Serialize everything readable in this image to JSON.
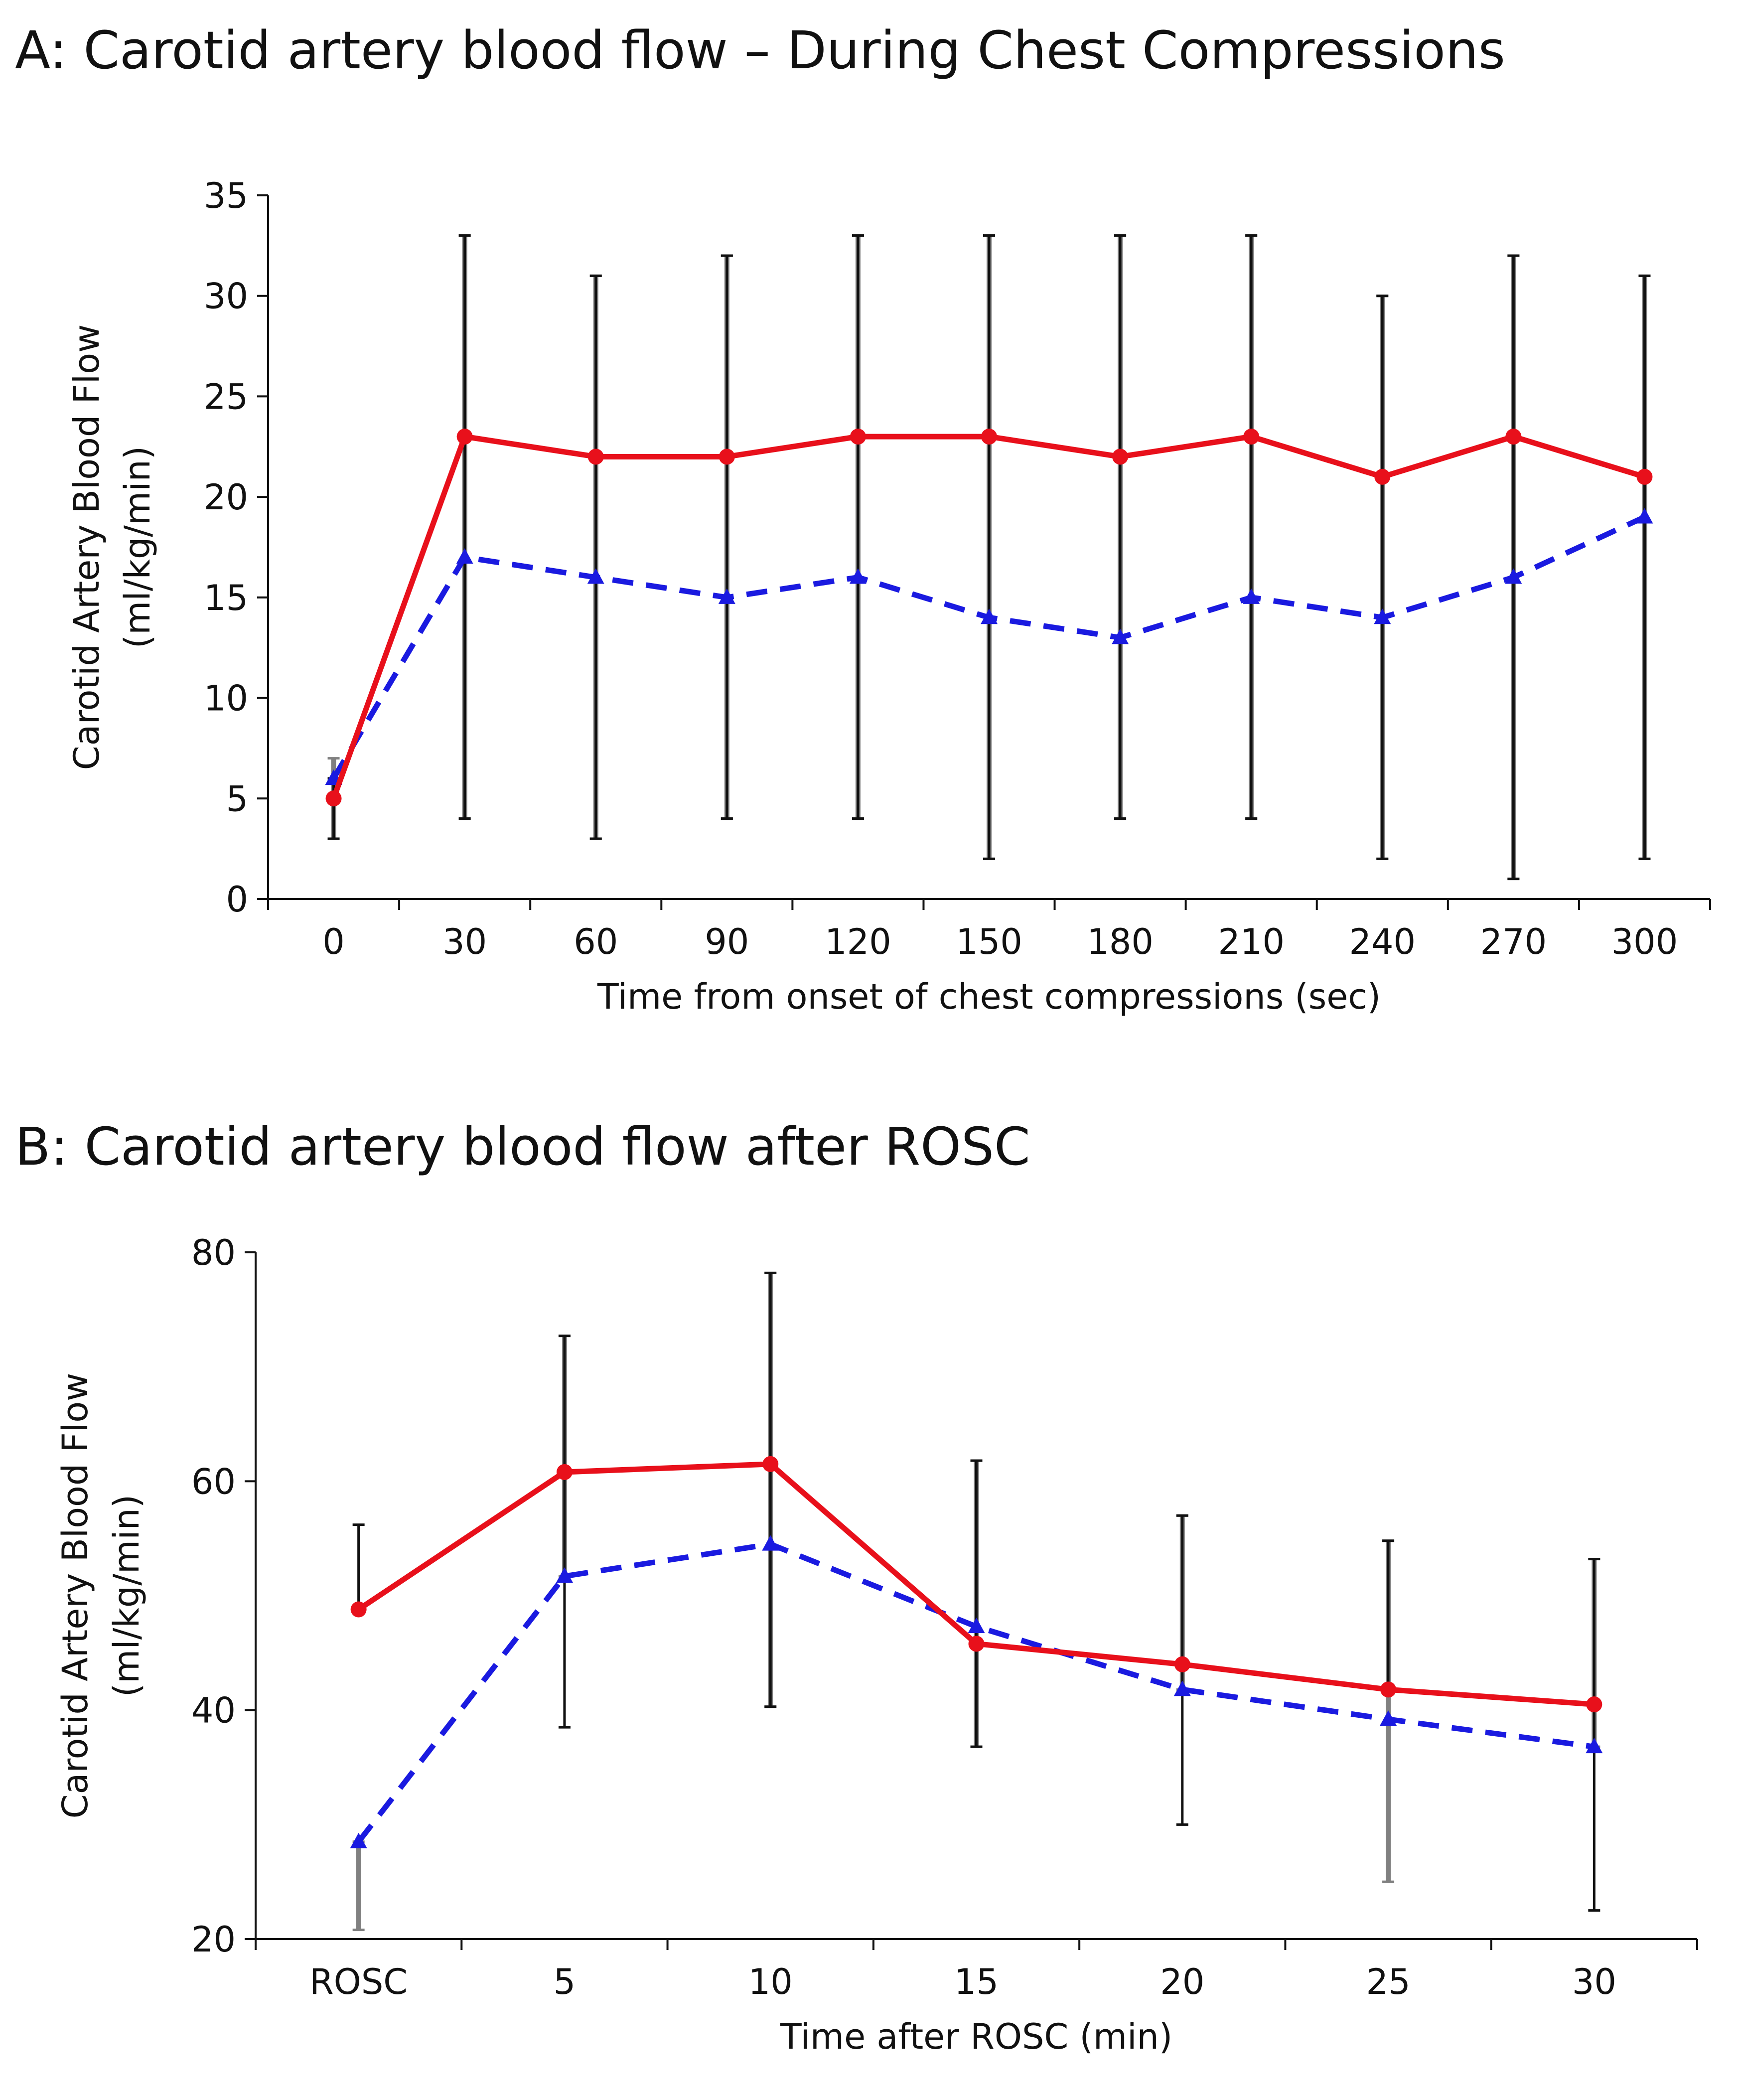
{
  "chart_data": [
    {
      "type": "line",
      "title": "A: Carotid artery blood flow – During Chest Compressions",
      "xlabel": "Time from onset of chest compressions (sec)",
      "ylabel_line1": "Carotid Artery Blood Flow",
      "ylabel_line2": "(ml/kg/min)",
      "categories": [
        "0",
        "30",
        "60",
        "90",
        "120",
        "150",
        "180",
        "210",
        "240",
        "270",
        "300"
      ],
      "ylim": [
        0,
        35
      ],
      "yticks": [
        0,
        5,
        10,
        15,
        20,
        25,
        30,
        35
      ],
      "series": [
        {
          "name": "red-solid-circles",
          "color": "#e8101b",
          "style": "solid",
          "marker": "circle",
          "values": [
            5,
            23,
            22,
            22,
            23,
            23,
            22,
            23,
            21,
            23,
            21
          ],
          "error_low": [
            3,
            4,
            3,
            4,
            4,
            2,
            4,
            4,
            2,
            1,
            2
          ],
          "error_high": [
            6,
            33,
            31,
            32,
            33,
            33,
            33,
            33,
            30,
            32,
            31
          ],
          "error_color": "#111111"
        },
        {
          "name": "blue-dashed-triangles",
          "color": "#1a1ae0",
          "style": "dashed",
          "marker": "triangle",
          "values": [
            6,
            17,
            16,
            15,
            16,
            14,
            13,
            15,
            14,
            16,
            19
          ],
          "error_low": [
            3,
            4,
            3,
            4,
            4,
            2,
            4,
            4,
            2,
            1,
            2
          ],
          "error_high": [
            7,
            33,
            31,
            32,
            33,
            33,
            33,
            33,
            30,
            32,
            31
          ],
          "error_color": "#808080"
        }
      ]
    },
    {
      "type": "line",
      "title": "B: Carotid artery blood flow after ROSC",
      "xlabel": "Time after ROSC (min)",
      "ylabel_line1": "Carotid Artery Blood Flow",
      "ylabel_line2": "(ml/kg/min)",
      "categories": [
        "ROSC",
        "5",
        "10",
        "15",
        "20",
        "25",
        "30"
      ],
      "ylim": [
        20,
        80
      ],
      "yticks": [
        20,
        40,
        60,
        80
      ],
      "series": [
        {
          "name": "red-solid-circles",
          "color": "#e8101b",
          "style": "solid",
          "marker": "circle",
          "values": [
            48.8,
            60.8,
            61.5,
            45.8,
            44.0,
            41.8,
            40.5
          ],
          "error_low": [
            48.8,
            38.5,
            40.3,
            36.8,
            30.0,
            41.8,
            22.5
          ],
          "error_high": [
            56.2,
            72.7,
            78.2,
            61.8,
            57.0,
            54.8,
            53.2
          ],
          "error_color": "#111111"
        },
        {
          "name": "blue-dashed-triangles",
          "color": "#1a1ae0",
          "style": "dashed",
          "marker": "triangle",
          "values": [
            28.5,
            51.7,
            54.5,
            47.3,
            41.8,
            39.2,
            36.8
          ],
          "error_low": [
            20.8,
            51.7,
            40.3,
            36.8,
            41.8,
            25.0,
            36.8
          ],
          "error_high": [
            28.5,
            72.7,
            78.2,
            61.8,
            57.0,
            54.8,
            53.2
          ],
          "error_color": "#808080"
        }
      ]
    }
  ]
}
